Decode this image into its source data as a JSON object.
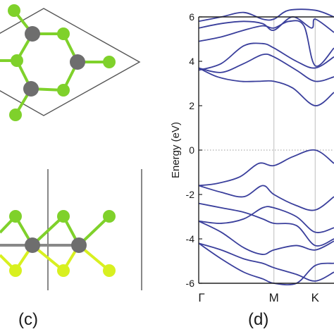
{
  "panels": {
    "c": {
      "label": "(c)"
    },
    "d": {
      "label": "(d)"
    }
  },
  "colors": {
    "band": "#3a3f9c",
    "metal_atom": "#6e6e6e",
    "green_atom": "#7fd12b",
    "yellow_atom": "#d8f020",
    "cell_line": "#555555",
    "grid_line": "#c8c8c8"
  },
  "chart_data": {
    "type": "line",
    "title": "",
    "xlabel": "",
    "ylabel": "Energy (eV)",
    "ylim": [
      -6,
      6
    ],
    "yticks": [
      "-6",
      "-4",
      "-2",
      "0",
      "2",
      "4",
      "6"
    ],
    "yticks_values": [
      -6,
      -4,
      -2,
      0,
      2,
      4,
      6
    ],
    "x_tick_labels": [
      "Γ",
      "M",
      "K"
    ],
    "x_tick_positions": [
      0,
      1,
      1.55
    ],
    "xlim": [
      0,
      1.8
    ],
    "fermi_level": 0,
    "series": [
      {
        "values": [
          [
            0,
            -1.6
          ],
          [
            0.25,
            -1.5
          ],
          [
            0.55,
            -1.2
          ],
          [
            0.8,
            -0.6
          ],
          [
            1.0,
            -0.7
          ],
          [
            1.25,
            -0.3
          ],
          [
            1.55,
            0.0
          ],
          [
            1.8,
            -0.6
          ]
        ]
      },
      {
        "values": [
          [
            0,
            -1.6
          ],
          [
            0.3,
            -1.9
          ],
          [
            0.6,
            -2.1
          ],
          [
            0.85,
            -1.6
          ],
          [
            1.0,
            -2.0
          ],
          [
            1.3,
            -2.5
          ],
          [
            1.55,
            -2.7
          ],
          [
            1.8,
            -2.1
          ]
        ]
      },
      {
        "values": [
          [
            0,
            -2.4
          ],
          [
            0.3,
            -2.6
          ],
          [
            0.6,
            -2.8
          ],
          [
            0.85,
            -3.1
          ],
          [
            1.0,
            -3.3
          ],
          [
            1.3,
            -3.4
          ],
          [
            1.55,
            -4.3
          ],
          [
            1.8,
            -4.0
          ]
        ]
      },
      {
        "values": [
          [
            0,
            -3.2
          ],
          [
            0.3,
            -3.3
          ],
          [
            0.6,
            -3.1
          ],
          [
            0.85,
            -2.6
          ],
          [
            1.0,
            -2.6
          ],
          [
            1.3,
            -3.0
          ],
          [
            1.55,
            -3.7
          ],
          [
            1.8,
            -3.5
          ]
        ]
      },
      {
        "values": [
          [
            0,
            -3.2
          ],
          [
            0.3,
            -3.7
          ],
          [
            0.6,
            -4.4
          ],
          [
            0.85,
            -4.7
          ],
          [
            1.0,
            -4.5
          ],
          [
            1.3,
            -4.3
          ],
          [
            1.55,
            -4.5
          ],
          [
            1.8,
            -4.1
          ]
        ]
      },
      {
        "values": [
          [
            0,
            -4.2
          ],
          [
            0.3,
            -4.5
          ],
          [
            0.6,
            -4.9
          ],
          [
            0.85,
            -5.1
          ],
          [
            1.0,
            -5.3
          ],
          [
            1.3,
            -5.6
          ],
          [
            1.55,
            -5.9
          ],
          [
            1.8,
            -5.5
          ]
        ]
      },
      {
        "values": [
          [
            0,
            -4.2
          ],
          [
            0.3,
            -4.9
          ],
          [
            0.6,
            -5.5
          ],
          [
            0.85,
            -5.8
          ],
          [
            1.0,
            -6.0
          ],
          [
            1.3,
            -6.0
          ],
          [
            1.55,
            -5.2
          ],
          [
            1.8,
            -5.1
          ]
        ]
      },
      {
        "values": [
          [
            0,
            3.7
          ],
          [
            0.25,
            3.3
          ],
          [
            0.55,
            3.1
          ],
          [
            0.8,
            3.1
          ],
          [
            1.0,
            3.1
          ],
          [
            1.25,
            2.8
          ],
          [
            1.55,
            2.0
          ],
          [
            1.8,
            2.6
          ]
        ]
      },
      {
        "values": [
          [
            0,
            3.7
          ],
          [
            0.3,
            3.5
          ],
          [
            0.6,
            3.9
          ],
          [
            0.85,
            4.3
          ],
          [
            1.0,
            4.2
          ],
          [
            1.3,
            3.6
          ],
          [
            1.55,
            3.1
          ],
          [
            1.8,
            3.3
          ]
        ]
      },
      {
        "values": [
          [
            0,
            3.6
          ],
          [
            0.3,
            3.9
          ],
          [
            0.6,
            4.7
          ],
          [
            0.85,
            4.8
          ],
          [
            1.0,
            4.6
          ],
          [
            1.3,
            4.0
          ],
          [
            1.55,
            3.7
          ],
          [
            1.8,
            4.2
          ]
        ]
      },
      {
        "values": [
          [
            0,
            4.9
          ],
          [
            0.3,
            5.1
          ],
          [
            0.6,
            5.4
          ],
          [
            0.85,
            5.6
          ],
          [
            1.0,
            5.5
          ],
          [
            1.2,
            5.8
          ],
          [
            1.4,
            5.6
          ],
          [
            1.55,
            3.8
          ],
          [
            1.8,
            4.6
          ]
        ]
      },
      {
        "values": [
          [
            0,
            5.5
          ],
          [
            0.3,
            5.7
          ],
          [
            0.6,
            5.8
          ],
          [
            0.85,
            5.7
          ],
          [
            1.0,
            5.4
          ],
          [
            1.25,
            6.0
          ],
          [
            1.5,
            5.5
          ],
          [
            1.55,
            5.9
          ],
          [
            1.8,
            5.3
          ]
        ]
      },
      {
        "values": [
          [
            0,
            5.8
          ],
          [
            0.3,
            6.0
          ],
          [
            0.6,
            6.2
          ],
          [
            0.85,
            5.9
          ],
          [
            1.0,
            5.9
          ],
          [
            1.2,
            6.3
          ],
          [
            1.55,
            6.3
          ],
          [
            1.8,
            6.0
          ]
        ]
      }
    ]
  }
}
